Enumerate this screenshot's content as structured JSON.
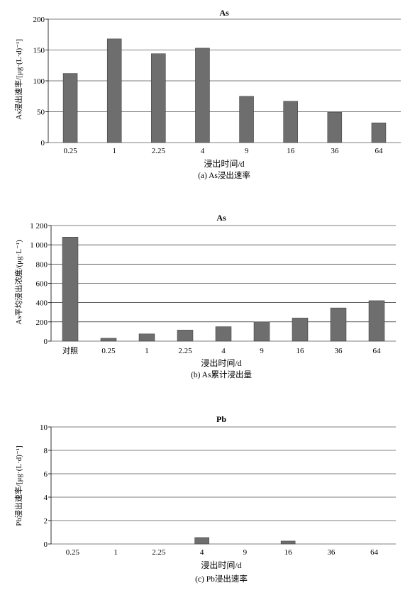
{
  "chart_data": [
    {
      "type": "bar",
      "title": "As",
      "ylabel": "As浸出速率/[μg·(L·d)⁻¹]",
      "xlabel": "浸出时间/d",
      "caption": "(a) As浸出速率",
      "categories": [
        "0.25",
        "1",
        "2.25",
        "4",
        "9",
        "16",
        "36",
        "64"
      ],
      "values": [
        112,
        168,
        144,
        153,
        75,
        67,
        49,
        32
      ],
      "ylim": [
        0,
        200
      ],
      "yticks": [
        0,
        50,
        100,
        150,
        200
      ],
      "ytick_labels": [
        "0",
        "50",
        "100",
        "150",
        "200"
      ],
      "grid": true,
      "bar_color": "#6e6e6e"
    },
    {
      "type": "bar",
      "title": "As",
      "ylabel": "As平均浸出浓度/(μg·L⁻¹)",
      "xlabel": "浸出时间/d",
      "caption": "(b) As累计浸出量",
      "categories": [
        "对照",
        "0.25",
        "1",
        "2.25",
        "4",
        "9",
        "16",
        "36",
        "64"
      ],
      "values": [
        1080,
        30,
        75,
        115,
        150,
        200,
        240,
        345,
        420
      ],
      "ylim": [
        0,
        1200
      ],
      "yticks": [
        0,
        200,
        400,
        600,
        800,
        1000,
        1200
      ],
      "ytick_labels": [
        "0",
        "200",
        "400",
        "600",
        "800",
        "1 000",
        "1 200"
      ],
      "grid": true,
      "bar_color": "#6e6e6e"
    },
    {
      "type": "bar",
      "title": "Pb",
      "ylabel": "Pb浸出速率/[μg·(L·d)⁻¹]",
      "xlabel": "浸出时间/d",
      "caption": "(c) Pb浸出速率",
      "categories": [
        "0.25",
        "1",
        "2.25",
        "4",
        "9",
        "16",
        "36",
        "64"
      ],
      "values": [
        0,
        0,
        0,
        0.55,
        0,
        0.25,
        0,
        0
      ],
      "ylim": [
        0,
        10
      ],
      "yticks": [
        0,
        2,
        4,
        6,
        8,
        10
      ],
      "ytick_labels": [
        "0",
        "2",
        "4",
        "6",
        "8",
        "10"
      ],
      "grid": true,
      "bar_color": "#6e6e6e"
    }
  ]
}
